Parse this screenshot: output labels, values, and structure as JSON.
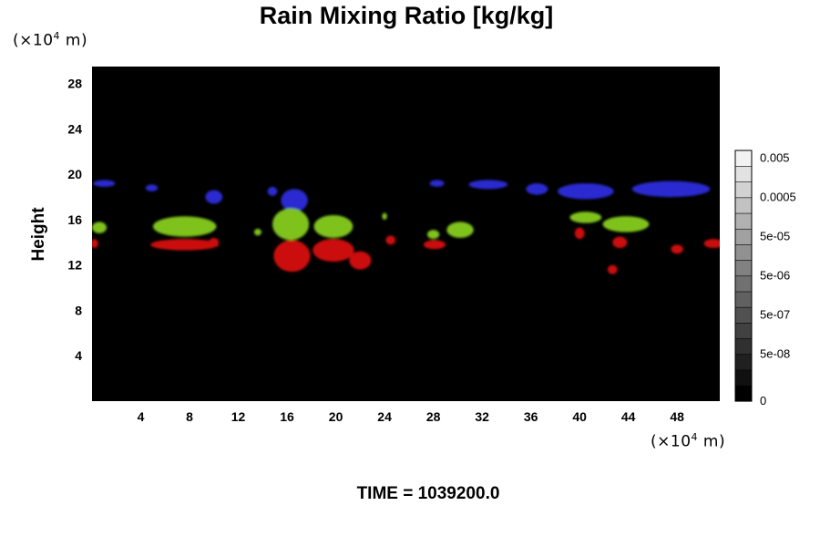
{
  "chart_data": {
    "type": "heatmap",
    "title": "Rain Mixing Ratio [kg/kg]",
    "xlabel": "",
    "ylabel": "Height",
    "x_unit": {
      "prefix": "(×10",
      "exp": "4",
      "suffix": " m)"
    },
    "y_unit": {
      "prefix": "(×10",
      "exp": "4",
      "suffix": " m)"
    },
    "xlim": [
      0,
      51.5
    ],
    "ylim": [
      0,
      29.5
    ],
    "xticks": [
      4,
      8,
      12,
      16,
      20,
      24,
      28,
      32,
      36,
      40,
      44,
      48
    ],
    "yticks": [
      4,
      8,
      12,
      16,
      20,
      24,
      28
    ],
    "background_color": "#000000",
    "colorbar": {
      "tick_labels": [
        "0",
        "5e-08",
        "5e-07",
        "5e-06",
        "5e-05",
        "0.0005",
        "0.005"
      ],
      "levels": 16,
      "color_low": "#000000",
      "color_high": "#f2f2f2"
    },
    "features": [
      {
        "layer": "blue",
        "color": "#2a2ad0",
        "x": 16.6,
        "y": 17.7,
        "rx": 1.1,
        "ry": 1.0
      },
      {
        "layer": "blue",
        "color": "#2a2ad0",
        "x": 10.0,
        "y": 18.0,
        "rx": 0.7,
        "ry": 0.6
      },
      {
        "layer": "blue",
        "color": "#2a2ad0",
        "x": 14.8,
        "y": 18.5,
        "rx": 0.4,
        "ry": 0.4
      },
      {
        "layer": "blue",
        "color": "#2a2ad0",
        "x": 1.0,
        "y": 19.2,
        "rx": 0.9,
        "ry": 0.3
      },
      {
        "layer": "blue",
        "color": "#2a2ad0",
        "x": 4.9,
        "y": 18.8,
        "rx": 0.5,
        "ry": 0.3
      },
      {
        "layer": "blue",
        "color": "#2a2ad0",
        "x": 32.5,
        "y": 19.1,
        "rx": 1.6,
        "ry": 0.4
      },
      {
        "layer": "blue",
        "color": "#2a2ad0",
        "x": 36.5,
        "y": 18.7,
        "rx": 0.9,
        "ry": 0.5
      },
      {
        "layer": "blue",
        "color": "#2a2ad0",
        "x": 40.5,
        "y": 18.5,
        "rx": 2.3,
        "ry": 0.7
      },
      {
        "layer": "blue",
        "color": "#2a2ad0",
        "x": 47.5,
        "y": 18.7,
        "rx": 3.2,
        "ry": 0.7
      },
      {
        "layer": "blue",
        "color": "#2a2ad0",
        "x": 28.3,
        "y": 19.2,
        "rx": 0.6,
        "ry": 0.3
      },
      {
        "layer": "green",
        "color": "#7fc21e",
        "x": 7.6,
        "y": 15.4,
        "rx": 2.6,
        "ry": 0.9
      },
      {
        "layer": "green",
        "color": "#7fc21e",
        "x": 16.3,
        "y": 15.6,
        "rx": 1.5,
        "ry": 1.4
      },
      {
        "layer": "green",
        "color": "#7fc21e",
        "x": 19.8,
        "y": 15.4,
        "rx": 1.6,
        "ry": 1.0
      },
      {
        "layer": "green",
        "color": "#7fc21e",
        "x": 0.6,
        "y": 15.3,
        "rx": 0.6,
        "ry": 0.5
      },
      {
        "layer": "green",
        "color": "#7fc21e",
        "x": 30.2,
        "y": 15.1,
        "rx": 1.1,
        "ry": 0.7
      },
      {
        "layer": "green",
        "color": "#7fc21e",
        "x": 28.0,
        "y": 14.7,
        "rx": 0.5,
        "ry": 0.4
      },
      {
        "layer": "green",
        "color": "#7fc21e",
        "x": 40.5,
        "y": 16.2,
        "rx": 1.3,
        "ry": 0.5
      },
      {
        "layer": "green",
        "color": "#7fc21e",
        "x": 43.8,
        "y": 15.6,
        "rx": 1.9,
        "ry": 0.7
      },
      {
        "layer": "green",
        "color": "#7fc21e",
        "x": 24.0,
        "y": 16.3,
        "rx": 0.2,
        "ry": 0.3
      },
      {
        "layer": "green",
        "color": "#7fc21e",
        "x": 13.6,
        "y": 14.9,
        "rx": 0.3,
        "ry": 0.3
      },
      {
        "layer": "red",
        "color": "#cc1010",
        "x": 7.6,
        "y": 13.8,
        "rx": 2.8,
        "ry": 0.5
      },
      {
        "layer": "red",
        "color": "#cc1010",
        "x": 16.4,
        "y": 12.8,
        "rx": 1.5,
        "ry": 1.4
      },
      {
        "layer": "red",
        "color": "#cc1010",
        "x": 19.8,
        "y": 13.3,
        "rx": 1.7,
        "ry": 1.0
      },
      {
        "layer": "red",
        "color": "#cc1010",
        "x": 22.0,
        "y": 12.4,
        "rx": 0.9,
        "ry": 0.8
      },
      {
        "layer": "red",
        "color": "#cc1010",
        "x": 10.0,
        "y": 14.0,
        "rx": 0.4,
        "ry": 0.4
      },
      {
        "layer": "red",
        "color": "#cc1010",
        "x": 0.2,
        "y": 13.9,
        "rx": 0.3,
        "ry": 0.4
      },
      {
        "layer": "red",
        "color": "#cc1010",
        "x": 24.5,
        "y": 14.2,
        "rx": 0.4,
        "ry": 0.4
      },
      {
        "layer": "red",
        "color": "#cc1010",
        "x": 28.1,
        "y": 13.8,
        "rx": 0.9,
        "ry": 0.4
      },
      {
        "layer": "red",
        "color": "#cc1010",
        "x": 40.0,
        "y": 14.8,
        "rx": 0.4,
        "ry": 0.5
      },
      {
        "layer": "red",
        "color": "#cc1010",
        "x": 43.3,
        "y": 14.0,
        "rx": 0.6,
        "ry": 0.5
      },
      {
        "layer": "red",
        "color": "#cc1010",
        "x": 42.7,
        "y": 11.6,
        "rx": 0.4,
        "ry": 0.4
      },
      {
        "layer": "red",
        "color": "#cc1010",
        "x": 48.0,
        "y": 13.4,
        "rx": 0.5,
        "ry": 0.4
      },
      {
        "layer": "red",
        "color": "#cc1010",
        "x": 51.0,
        "y": 13.9,
        "rx": 0.8,
        "ry": 0.4
      }
    ]
  },
  "time_label": "TIME = 1039200.0"
}
